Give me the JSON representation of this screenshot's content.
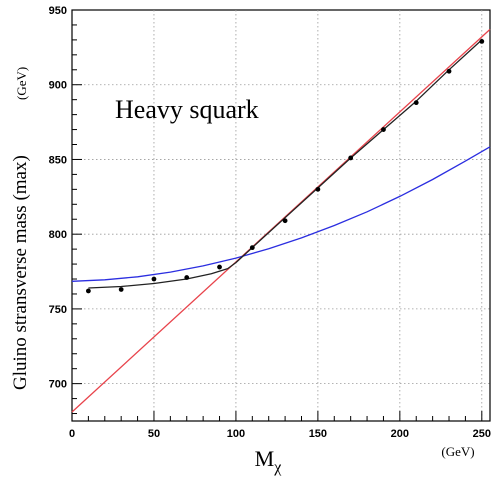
{
  "chart_data": {
    "type": "line",
    "xlabel": "M",
    "xlabel_sub": "χ",
    "x_unit": "(GeV)",
    "ylabel": "Gluino stransverse mass (max)",
    "y_unit": "(GeV)",
    "annotation": "Heavy squark",
    "xlim": [
      0,
      255
    ],
    "ylim": [
      675,
      950
    ],
    "x_ticks": [
      0,
      50,
      100,
      150,
      200,
      250
    ],
    "y_ticks": [
      700,
      750,
      800,
      850,
      900,
      950
    ],
    "grid": true,
    "series": [
      {
        "kind": "line",
        "color": "#e8434b",
        "x": [
          0,
          255
        ],
        "y": [
          681,
          937
        ]
      },
      {
        "kind": "line",
        "color": "#2b2ee0",
        "x": [
          0,
          20,
          40,
          60,
          80,
          100,
          120,
          140,
          160,
          180,
          200,
          220,
          240,
          255
        ],
        "y": [
          768.5,
          769.5,
          771.5,
          774.6,
          778.8,
          784,
          790.2,
          797.5,
          805.8,
          815,
          825.3,
          836.6,
          848.9,
          858.5
        ]
      },
      {
        "kind": "line",
        "color": "#222222",
        "x": [
          10,
          30,
          50,
          70,
          85,
          95,
          100,
          110,
          130,
          150,
          170,
          190,
          210,
          230,
          250
        ],
        "y": [
          764,
          765,
          767,
          770,
          773.5,
          777,
          781,
          791,
          811,
          831,
          851,
          870,
          889,
          910,
          930
        ]
      },
      {
        "kind": "scatter",
        "color": "#000000",
        "x": [
          10,
          30,
          50,
          70,
          90,
          110,
          130,
          150,
          170,
          190,
          210,
          230,
          250
        ],
        "y": [
          762,
          763,
          770,
          771,
          778,
          791,
          809,
          830,
          851,
          870,
          888,
          909,
          929
        ]
      }
    ]
  }
}
